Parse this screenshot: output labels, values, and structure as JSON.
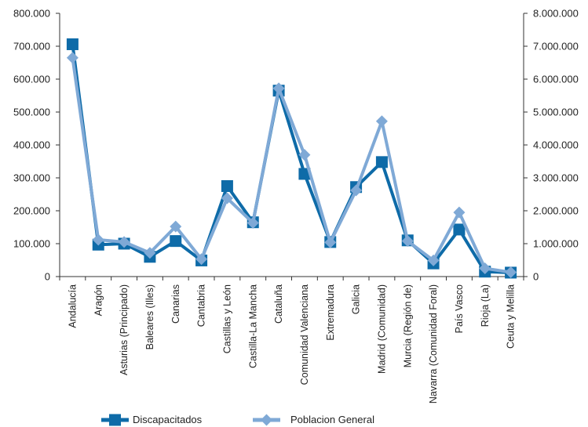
{
  "chart_data": {
    "type": "line",
    "categories": [
      "Andalucía",
      "Aragón",
      "Asturias (Principado)",
      "Baleares (Illes)",
      "Canarias",
      "Cantabria",
      "Castillas y León",
      "Castilla-La Mancha",
      "Cataluña",
      "Comunidad Valenciana",
      "Extremadura",
      "Galicia",
      "Madrid (Comunidad)",
      "Murcia (Región de)",
      "Navarra (Comunidad Foral)",
      "País Vasco",
      "Rioja (La)",
      "Ceuta y Melilla"
    ],
    "series": [
      {
        "name": "Discapacitados",
        "axis": "left",
        "color": "#0e6ba8",
        "marker": "square",
        "values": [
          706000,
          97000,
          100000,
          60000,
          108000,
          49000,
          275000,
          165000,
          565000,
          312000,
          105000,
          272000,
          348000,
          110000,
          40000,
          143000,
          15000,
          12000
        ]
      },
      {
        "name": "Poblacion General",
        "axis": "right",
        "color": "#7fa9d6",
        "marker": "diamond",
        "values": [
          6650000,
          1120000,
          1050000,
          720000,
          1520000,
          530000,
          2380000,
          1630000,
          5720000,
          3700000,
          1040000,
          2620000,
          4720000,
          1080000,
          490000,
          1950000,
          250000,
          130000
        ]
      }
    ],
    "y_left": {
      "min": 0,
      "max": 800000,
      "ticks": [
        0,
        100000,
        200000,
        300000,
        400000,
        500000,
        600000,
        700000,
        800000
      ],
      "tick_labels": [
        "0",
        "100.000",
        "200.000",
        "300.000",
        "400.000",
        "500.000",
        "600.000",
        "700.000",
        "800.000"
      ]
    },
    "y_right": {
      "min": 0,
      "max": 8000000,
      "ticks": [
        0,
        1000000,
        2000000,
        3000000,
        4000000,
        5000000,
        6000000,
        7000000,
        8000000
      ],
      "tick_labels": [
        "0",
        "1.000.000",
        "2.000.000",
        "3.000.000",
        "4.000.000",
        "5.000.000",
        "6.000.000",
        "7.000.000",
        "8.000.000"
      ]
    },
    "grid": false,
    "legend": "bottom",
    "legend_labels": [
      "Discapacitados",
      "Poblacion General"
    ]
  }
}
